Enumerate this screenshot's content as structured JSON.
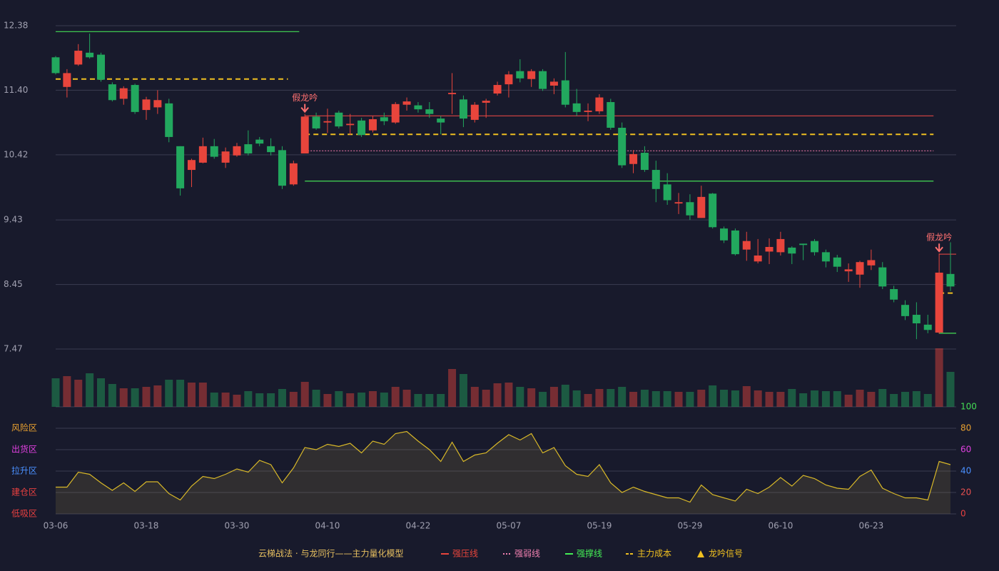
{
  "chart_data": [
    {
      "type": "candlestick",
      "categories": [
        "03-06",
        null,
        null,
        null,
        null,
        null,
        null,
        null,
        "03-18",
        null,
        null,
        null,
        null,
        null,
        null,
        null,
        "03-30",
        null,
        null,
        null,
        null,
        null,
        null,
        null,
        "04-10",
        null,
        null,
        null,
        null,
        null,
        null,
        null,
        "04-22",
        null,
        null,
        null,
        null,
        null,
        null,
        null,
        "05-07",
        null,
        null,
        null,
        null,
        null,
        null,
        null,
        "05-19",
        null,
        null,
        null,
        null,
        null,
        null,
        null,
        "05-29",
        null,
        null,
        null,
        null,
        null,
        null,
        null,
        "06-10",
        null,
        null,
        null,
        null,
        null,
        null,
        null,
        "06-23",
        null,
        null,
        null,
        null,
        null,
        null,
        null
      ],
      "open": [
        11.9,
        11.45,
        11.79,
        11.97,
        11.94,
        11.49,
        11.27,
        11.48,
        11.1,
        11.14,
        11.2,
        10.55,
        10.19,
        10.3,
        10.55,
        10.3,
        10.41,
        10.58,
        10.65,
        10.55,
        10.49,
        9.97,
        10.44,
        11.0,
        10.91,
        11.06,
        10.87,
        10.94,
        10.79,
        10.99,
        10.91,
        11.18,
        11.17,
        11.11,
        10.97,
        11.34,
        11.26,
        10.95,
        11.21,
        11.35,
        11.49,
        11.69,
        11.57,
        11.69,
        11.47,
        11.55,
        11.2,
        11.07,
        11.08,
        11.22,
        10.83,
        10.28,
        10.45,
        10.19,
        9.97,
        9.68,
        9.7,
        9.46,
        9.83,
        9.3,
        9.27,
        8.98,
        8.8,
        8.95,
        8.94,
        9.01,
        9.07,
        9.11,
        8.94,
        8.86,
        8.65,
        8.6,
        8.74,
        8.71,
        8.38,
        8.14,
        7.99,
        7.84,
        7.72,
        8.61
      ],
      "high": [
        11.92,
        11.72,
        12.1,
        12.26,
        11.97,
        11.52,
        11.46,
        11.5,
        11.3,
        11.4,
        11.27,
        10.55,
        10.36,
        10.68,
        10.66,
        10.53,
        10.6,
        10.79,
        10.69,
        10.67,
        10.55,
        10.33,
        11.04,
        11.06,
        11.12,
        11.09,
        11.04,
        10.98,
        11.01,
        11.06,
        11.22,
        11.29,
        11.22,
        11.22,
        11.01,
        11.66,
        11.32,
        11.22,
        11.27,
        11.53,
        11.69,
        11.87,
        11.72,
        11.72,
        11.58,
        11.98,
        11.42,
        11.2,
        11.34,
        11.27,
        10.91,
        10.49,
        10.55,
        10.33,
        10.14,
        9.84,
        9.82,
        9.95,
        9.84,
        9.33,
        9.3,
        9.25,
        9.14,
        9.15,
        9.25,
        9.03,
        9.07,
        9.14,
        8.98,
        8.9,
        8.77,
        8.81,
        8.98,
        8.79,
        8.43,
        8.21,
        8.18,
        7.99,
        8.92,
        9.09
      ],
      "low": [
        11.64,
        11.29,
        11.77,
        11.88,
        11.53,
        11.23,
        11.18,
        11.04,
        10.95,
        11.04,
        10.61,
        9.8,
        9.93,
        10.29,
        10.36,
        10.22,
        10.39,
        10.41,
        10.55,
        10.41,
        9.9,
        9.95,
        10.44,
        10.8,
        10.75,
        10.82,
        10.72,
        10.69,
        10.76,
        10.87,
        10.89,
        11.09,
        11.06,
        10.98,
        10.73,
        11.04,
        10.84,
        10.91,
        10.98,
        11.32,
        11.29,
        11.52,
        11.45,
        11.39,
        11.34,
        11.14,
        11.01,
        10.93,
        11.04,
        10.8,
        10.22,
        10.14,
        10.16,
        9.7,
        9.66,
        9.52,
        9.43,
        9.46,
        9.3,
        9.08,
        8.89,
        8.81,
        8.77,
        8.76,
        8.89,
        8.76,
        8.82,
        8.89,
        8.71,
        8.64,
        8.49,
        8.4,
        8.67,
        8.38,
        8.18,
        7.91,
        7.62,
        7.71,
        7.7,
        8.35
      ],
      "close": [
        11.66,
        11.66,
        12.0,
        11.9,
        11.56,
        11.25,
        11.43,
        11.07,
        11.26,
        11.25,
        10.69,
        9.91,
        10.34,
        10.55,
        10.39,
        10.47,
        10.55,
        10.44,
        10.59,
        10.46,
        9.95,
        10.29,
        11.0,
        10.82,
        10.93,
        10.85,
        10.89,
        10.72,
        10.96,
        10.93,
        11.19,
        11.23,
        11.11,
        11.04,
        10.91,
        11.36,
        10.97,
        11.18,
        11.24,
        11.48,
        11.64,
        11.58,
        11.69,
        11.42,
        11.53,
        11.18,
        11.07,
        11.09,
        11.29,
        10.83,
        10.26,
        10.43,
        10.19,
        9.9,
        9.73,
        9.7,
        9.5,
        9.78,
        9.32,
        9.12,
        8.91,
        9.11,
        8.89,
        9.02,
        9.14,
        8.92,
        9.05,
        8.94,
        8.8,
        8.72,
        8.68,
        8.79,
        8.82,
        8.42,
        8.22,
        7.97,
        7.86,
        7.76,
        8.63,
        8.42
      ],
      "volume": [
        40,
        43,
        38,
        47,
        40,
        32,
        26,
        26,
        28,
        30,
        38,
        38,
        34,
        34,
        20,
        20,
        17,
        22,
        19,
        19,
        25,
        21,
        35,
        24,
        18,
        22,
        19,
        20,
        22,
        20,
        28,
        24,
        18,
        18,
        18,
        53,
        46,
        28,
        24,
        33,
        34,
        28,
        26,
        21,
        28,
        31,
        23,
        18,
        25,
        25,
        28,
        21,
        24,
        22,
        22,
        21,
        21,
        24,
        30,
        24,
        23,
        29,
        23,
        21,
        21,
        25,
        19,
        23,
        22,
        22,
        17,
        24,
        21,
        25,
        18,
        21,
        22,
        18,
        82,
        49
      ],
      "up_color": "#e8453c",
      "down_color": "#22a85e",
      "ylim": [
        7.47,
        12.38
      ],
      "yticks": [
        7.47,
        8.45,
        9.43,
        10.42,
        {
          "value": 11.4,
          "label": "11.40"
        },
        12.38
      ],
      "grid": true,
      "lines": [
        {
          "name": "强撑线",
          "color": "#44dd55",
          "style": "solid",
          "start": 0,
          "end": 21,
          "value": 12.29
        },
        {
          "name": "主力成本",
          "color": "#f0c020",
          "style": "dashed",
          "start": 0,
          "end": 20,
          "value": 11.57
        },
        {
          "name": "强压线",
          "color": "#c84040",
          "style": "solid",
          "start": 22,
          "end": 77,
          "value": 11.01
        },
        {
          "name": "主力成本",
          "color": "#f0c020",
          "style": "dashed",
          "start": 22,
          "end": 77,
          "value": 10.73
        },
        {
          "name": "强弱线",
          "color": "#e070a0",
          "style": "dotted",
          "start": 22,
          "end": 77,
          "value": 10.48
        },
        {
          "name": "强撑线",
          "color": "#44dd55",
          "style": "solid",
          "start": 22,
          "end": 77,
          "value": 10.02
        },
        {
          "name": "强压线",
          "color": "#c84040",
          "style": "solid",
          "start": 78,
          "end": 79,
          "value": 8.91
        },
        {
          "name": "主力成本",
          "color": "#f0c020",
          "style": "dashed",
          "start": 78,
          "end": 79,
          "value": 8.32
        },
        {
          "name": "强撑线",
          "color": "#44dd55",
          "style": "solid",
          "start": 78,
          "end": 79,
          "value": 7.71
        }
      ],
      "signals": [
        {
          "label": "假龙吟",
          "index": 22
        },
        {
          "label": "假龙吟",
          "index": 78
        }
      ]
    },
    {
      "type": "line",
      "values": [
        25,
        25,
        39,
        37,
        29,
        22,
        29,
        21,
        30,
        30,
        19,
        13,
        26,
        35,
        33,
        37,
        42,
        39,
        50,
        46,
        29,
        43,
        62,
        60,
        65,
        63,
        66,
        57,
        68,
        65,
        75,
        77,
        68,
        60,
        49,
        67,
        49,
        55,
        57,
        66,
        74,
        69,
        75,
        57,
        62,
        45,
        37,
        35,
        46,
        29,
        20,
        25,
        21,
        18,
        15,
        15,
        11,
        27,
        18,
        15,
        12,
        23,
        19,
        25,
        34,
        26,
        36,
        33,
        27,
        24,
        23,
        35,
        41,
        24,
        19,
        15,
        15,
        13,
        49,
        46
      ],
      "color": "#d8b828",
      "ylim": [
        0,
        100
      ],
      "yticks": [
        0,
        20,
        40,
        60,
        80,
        100
      ],
      "ytick_colors": [
        "#e84040",
        "#e85050",
        "#4a90ff",
        "#e040e0",
        "#e8a030",
        "#44dd55"
      ],
      "zones": [
        {
          "label": "风险区",
          "value": 80,
          "color": "#e8a030"
        },
        {
          "label": "出货区",
          "value": 60,
          "color": "#e040e0"
        },
        {
          "label": "拉升区",
          "value": 40,
          "color": "#4a90ff"
        },
        {
          "label": "建仓区",
          "value": 20,
          "color": "#e84040"
        },
        {
          "label": "低吸区",
          "value": 0,
          "color": "#e84040"
        }
      ]
    }
  ],
  "legend": {
    "title": "云梯战法 · 与龙同行——主力量化模型",
    "title_color": "#e8c060",
    "items": [
      {
        "label": "强压线",
        "color": "#e8453c",
        "style": "solid"
      },
      {
        "label": "强弱线",
        "color": "#f080b0",
        "style": "dotted"
      },
      {
        "label": "强撑线",
        "color": "#44ee55",
        "style": "solid"
      },
      {
        "label": "主力成本",
        "color": "#f0c020",
        "style": "dashed"
      },
      {
        "label": "龙吟信号",
        "color": "#f0c020",
        "style": "triangle"
      }
    ]
  }
}
